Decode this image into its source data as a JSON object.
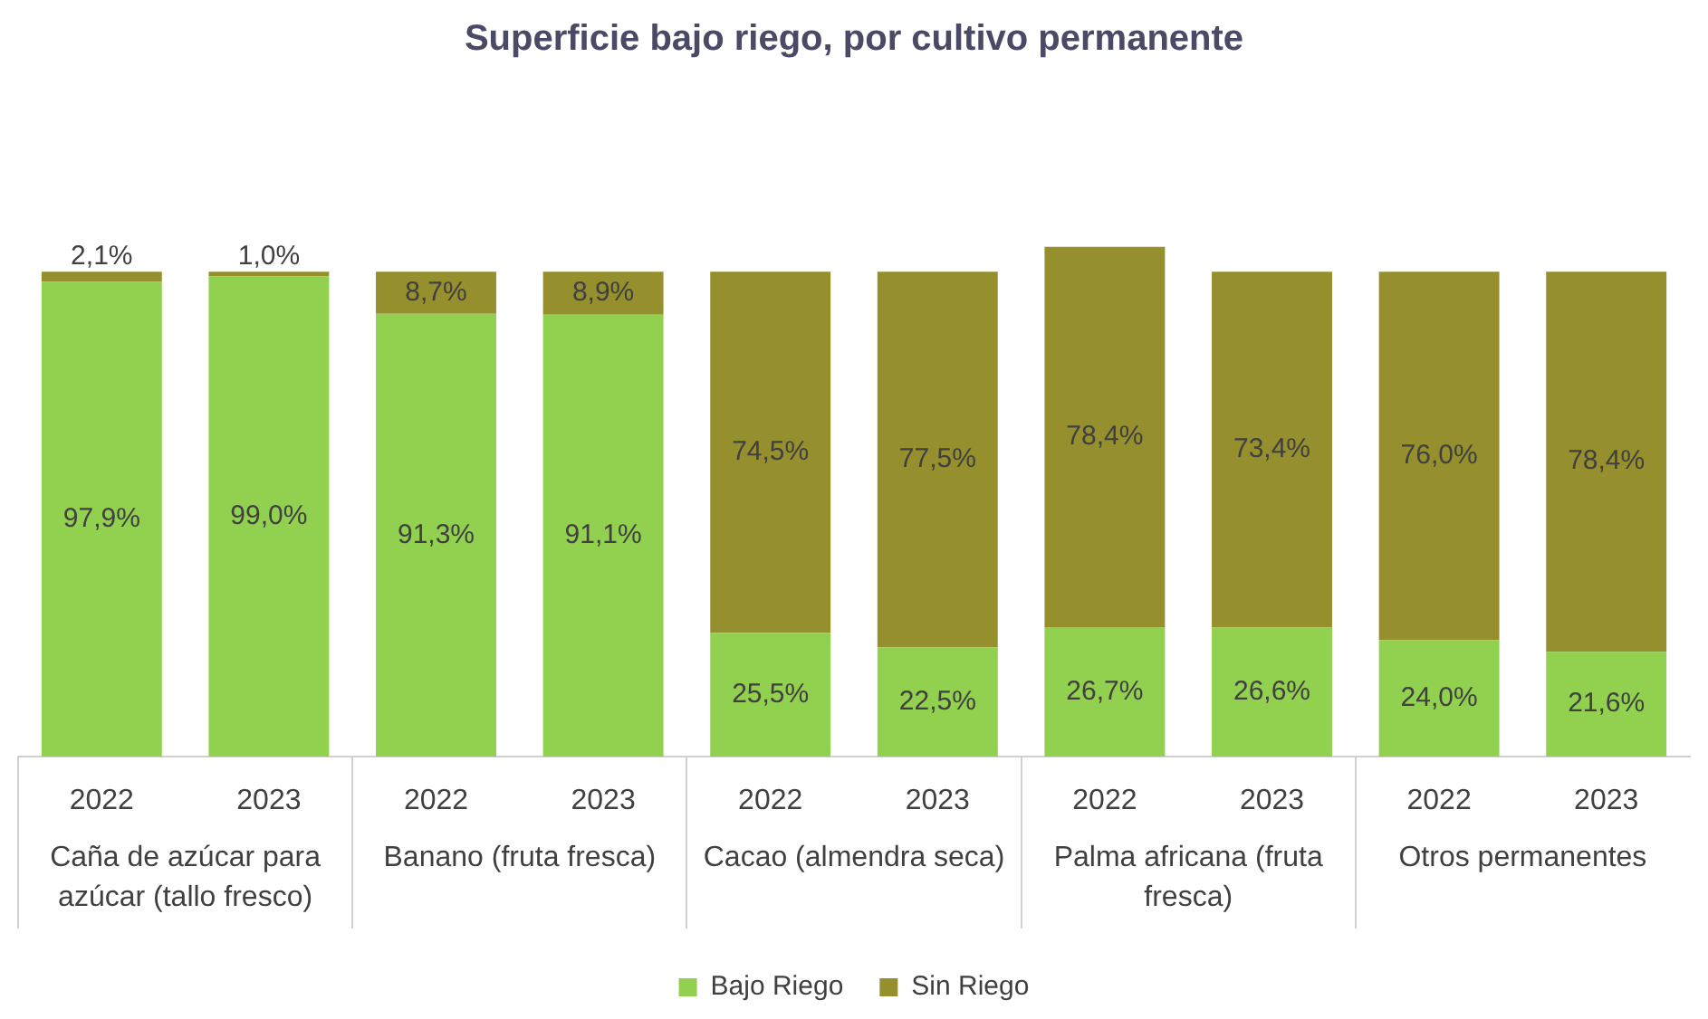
{
  "chart_data": {
    "type": "bar",
    "title": "Superficie bajo riego, por cultivo permanente",
    "stacked": true,
    "categories": [
      "2022",
      "2023",
      "2022",
      "2023",
      "2022",
      "2023",
      "2022",
      "2023",
      "2022",
      "2023"
    ],
    "annotations": [
      "Caña de azúcar para azúcar (tallo fresco)",
      "Banano (fruta fresca)",
      "Cacao (almendra seca)",
      "Palma africana (fruta fresca)",
      "Otros permanentes"
    ],
    "series": [
      {
        "name": "Bajo Riego",
        "color": "#92d050",
        "values": [
          97.9,
          99.0,
          91.3,
          91.1,
          25.5,
          22.5,
          26.7,
          26.6,
          24.0,
          21.6
        ],
        "value_labels": [
          "97,9%",
          "99,0%",
          "91,3%",
          "91,1%",
          "25,5%",
          "22,5%",
          "26,7%",
          "26,6%",
          "24,0%",
          "21,6%"
        ]
      },
      {
        "name": "Sin Riego",
        "color": "#958f2e",
        "values": [
          2.1,
          1.0,
          8.7,
          8.9,
          74.5,
          77.5,
          78.4,
          73.4,
          76.0,
          78.4
        ],
        "value_labels": [
          "2,1%",
          "1,0%",
          "8,7%",
          "8,9%",
          "74,5%",
          "77,5%",
          "78,4%",
          "73,4%",
          "76,0%",
          "78,4%"
        ]
      }
    ],
    "ylim": [
      0,
      106
    ],
    "tick_labels": "x",
    "grid": false,
    "legend": "bottom"
  }
}
